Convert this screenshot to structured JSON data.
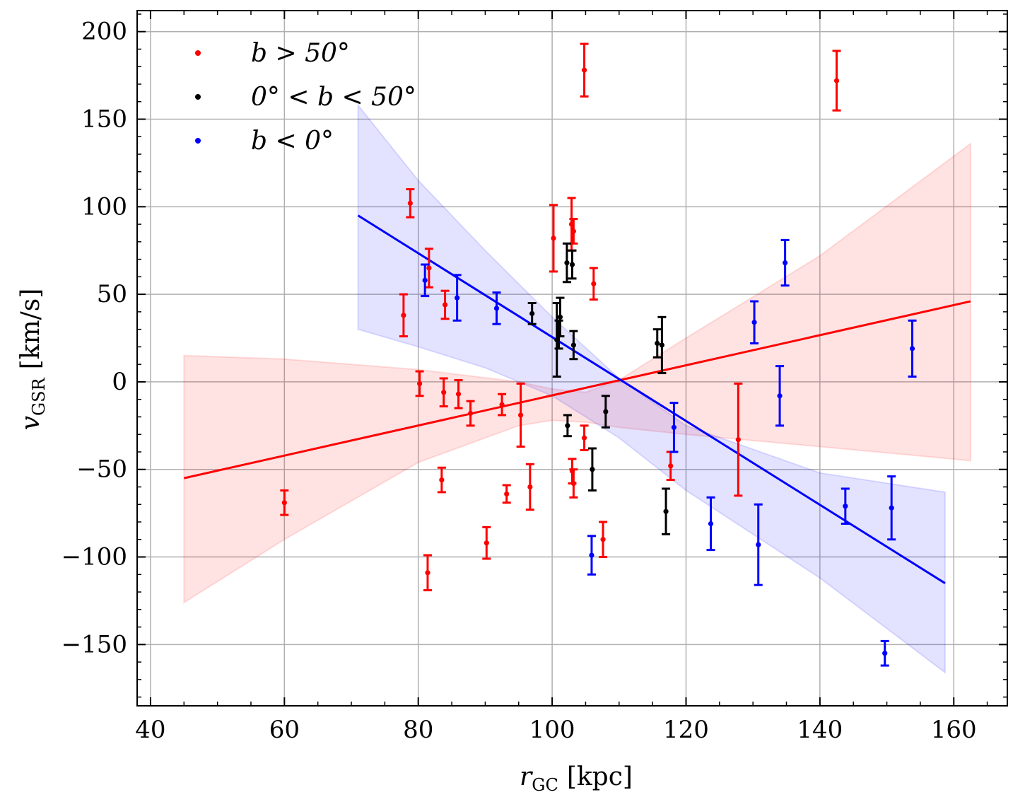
{
  "chart_data": {
    "type": "scatter",
    "xlabel": "r_GC [kpc]",
    "xlabel_main": "r",
    "xlabel_sub": "GC",
    "xlabel_unit": "[kpc]",
    "ylabel": "v_GSR [km/s]",
    "ylabel_main": "v",
    "ylabel_sub": "GSR",
    "ylabel_unit": "[km/s]",
    "xlim": [
      38,
      168
    ],
    "ylim": [
      -185,
      212
    ],
    "xticks": [
      40,
      60,
      80,
      100,
      120,
      140,
      160
    ],
    "yticks": [
      -150,
      -100,
      -50,
      0,
      50,
      100,
      150,
      200
    ],
    "xtick_labels": [
      "40",
      "60",
      "80",
      "100",
      "120",
      "140",
      "160"
    ],
    "ytick_labels": [
      "−150",
      "−100",
      "−50",
      "0",
      "50",
      "100",
      "150",
      "200"
    ],
    "grid": true,
    "legend_position": "top-left",
    "series": [
      {
        "name": "b > 50°",
        "color": "#ff0000",
        "points": [
          {
            "x": 60.0,
            "y": -69,
            "err": 7
          },
          {
            "x": 77.8,
            "y": 38,
            "err": 12
          },
          {
            "x": 78.8,
            "y": 102,
            "err": 8
          },
          {
            "x": 80.2,
            "y": -1,
            "err": 7
          },
          {
            "x": 81.4,
            "y": -109,
            "err": 10
          },
          {
            "x": 81.6,
            "y": 65,
            "err": 11
          },
          {
            "x": 83.5,
            "y": -56,
            "err": 7
          },
          {
            "x": 83.8,
            "y": -6,
            "err": 8
          },
          {
            "x": 84.0,
            "y": 44,
            "err": 8
          },
          {
            "x": 86.0,
            "y": -7,
            "err": 8
          },
          {
            "x": 87.8,
            "y": -18,
            "err": 7
          },
          {
            "x": 90.2,
            "y": -92,
            "err": 9
          },
          {
            "x": 92.5,
            "y": -13,
            "err": 6
          },
          {
            "x": 93.2,
            "y": -64,
            "err": 5
          },
          {
            "x": 95.3,
            "y": -19,
            "err": 18
          },
          {
            "x": 96.7,
            "y": -60,
            "err": 13
          },
          {
            "x": 100.2,
            "y": 82,
            "err": 19
          },
          {
            "x": 102.9,
            "y": 90,
            "err": 15
          },
          {
            "x": 103.2,
            "y": 86,
            "err": 7
          },
          {
            "x": 103.0,
            "y": -51,
            "err": 7
          },
          {
            "x": 103.2,
            "y": -58,
            "err": 8
          },
          {
            "x": 104.8,
            "y": 178,
            "err": 15
          },
          {
            "x": 104.8,
            "y": -32,
            "err": 7
          },
          {
            "x": 106.2,
            "y": 56,
            "err": 9
          },
          {
            "x": 107.6,
            "y": -90,
            "err": 10
          },
          {
            "x": 117.7,
            "y": -48,
            "err": 8
          },
          {
            "x": 127.8,
            "y": -33,
            "err": 32
          },
          {
            "x": 142.5,
            "y": 172,
            "err": 17
          }
        ]
      },
      {
        "name": "0° < b < 50°",
        "color": "#000000",
        "points": [
          {
            "x": 97.0,
            "y": 39,
            "err": 6
          },
          {
            "x": 100.7,
            "y": 24,
            "err": 21
          },
          {
            "x": 101.0,
            "y": 27,
            "err": 8
          },
          {
            "x": 101.2,
            "y": 37,
            "err": 11
          },
          {
            "x": 102.2,
            "y": 68,
            "err": 11
          },
          {
            "x": 102.3,
            "y": -25,
            "err": 6
          },
          {
            "x": 103.0,
            "y": 67,
            "err": 8
          },
          {
            "x": 103.2,
            "y": 21,
            "err": 8
          },
          {
            "x": 106.0,
            "y": -50,
            "err": 12
          },
          {
            "x": 108.0,
            "y": -17,
            "err": 9
          },
          {
            "x": 115.7,
            "y": 22,
            "err": 8
          },
          {
            "x": 116.4,
            "y": 21,
            "err": 16
          },
          {
            "x": 117.0,
            "y": -74,
            "err": 13
          }
        ]
      },
      {
        "name": "b < 0°",
        "color": "#0000ff",
        "points": [
          {
            "x": 81.0,
            "y": 58,
            "err": 9
          },
          {
            "x": 85.8,
            "y": 48,
            "err": 13
          },
          {
            "x": 91.7,
            "y": 42,
            "err": 9
          },
          {
            "x": 105.9,
            "y": -99,
            "err": 11
          },
          {
            "x": 118.2,
            "y": -26,
            "err": 14
          },
          {
            "x": 123.7,
            "y": -81,
            "err": 15
          },
          {
            "x": 130.2,
            "y": 34,
            "err": 12
          },
          {
            "x": 130.8,
            "y": -93,
            "err": 23
          },
          {
            "x": 134.0,
            "y": -8,
            "err": 17
          },
          {
            "x": 134.8,
            "y": 68,
            "err": 13
          },
          {
            "x": 143.8,
            "y": -71,
            "err": 10
          },
          {
            "x": 149.7,
            "y": -155,
            "err": 7
          },
          {
            "x": 150.7,
            "y": -72,
            "err": 18
          },
          {
            "x": 153.8,
            "y": 19,
            "err": 16
          }
        ]
      }
    ],
    "fits": [
      {
        "name": "b > 50° fit",
        "color": "#ff0000",
        "line": [
          [
            45,
            -55
          ],
          [
            162.5,
            46
          ]
        ],
        "band_upper": [
          [
            45,
            15
          ],
          [
            60,
            13
          ],
          [
            80,
            7
          ],
          [
            95,
            0
          ],
          [
            100,
            -4
          ],
          [
            105,
            -6
          ],
          [
            110,
            1
          ],
          [
            120,
            25
          ],
          [
            140,
            72
          ],
          [
            162.5,
            136
          ]
        ],
        "band_lower": [
          [
            45,
            -126
          ],
          [
            60,
            -90
          ],
          [
            80,
            -46
          ],
          [
            95,
            -25
          ],
          [
            100,
            -22
          ],
          [
            105,
            -23
          ],
          [
            110,
            -26
          ],
          [
            120,
            -30
          ],
          [
            140,
            -37
          ],
          [
            162.5,
            -45
          ]
        ]
      },
      {
        "name": "b < 0° fit",
        "color": "#0000ff",
        "line": [
          [
            71,
            95
          ],
          [
            158.7,
            -115
          ]
        ],
        "band_upper": [
          [
            71,
            158
          ],
          [
            80,
            115
          ],
          [
            90,
            75
          ],
          [
            100,
            37
          ],
          [
            110,
            2
          ],
          [
            120,
            -25
          ],
          [
            140,
            -52
          ],
          [
            158.7,
            -63
          ]
        ],
        "band_lower": [
          [
            71,
            30
          ],
          [
            80,
            20
          ],
          [
            90,
            8
          ],
          [
            100,
            -8
          ],
          [
            110,
            -32
          ],
          [
            120,
            -62
          ],
          [
            140,
            -112
          ],
          [
            158.7,
            -166
          ]
        ]
      }
    ],
    "legend": [
      {
        "label": "b > 50°",
        "color": "#ff0000"
      },
      {
        "label": "0° < b < 50°",
        "color": "#000000"
      },
      {
        "label": "b < 0°",
        "color": "#0000ff"
      }
    ]
  }
}
